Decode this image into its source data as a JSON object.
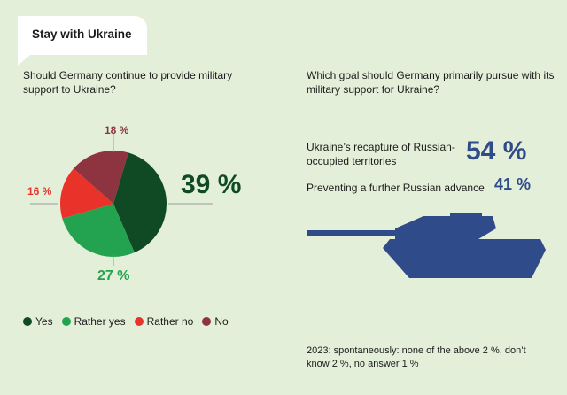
{
  "header": {
    "tag": "Stay with Ukraine"
  },
  "left": {
    "question": "Should Germany continue to provide military support to Ukraine?",
    "legend": [
      {
        "label": "Yes",
        "color": "#0f4a25"
      },
      {
        "label": "Rather yes",
        "color": "#23a350"
      },
      {
        "label": "Rather no",
        "color": "#e8322a"
      },
      {
        "label": "No",
        "color": "#8e3340"
      }
    ]
  },
  "right": {
    "question": "Which goal should Germany primarily pursue with its military support for Ukraine?",
    "goals": [
      {
        "label": "Ukraine’s recapture of Russian-occupied territories",
        "value_text": "54 %"
      },
      {
        "label": "Preventing a further Russian advance",
        "value_text": "41 %"
      }
    ],
    "note": "2023: spontaneously: none of the above 2 %, don’t know 2 %, no answer 1 %",
    "tank_icon": "tank-icon"
  },
  "chart_data": [
    {
      "type": "pie",
      "categories": [
        "Yes",
        "Rather yes",
        "Rather no",
        "No"
      ],
      "values": [
        39,
        27,
        16,
        18
      ],
      "value_labels": [
        "39 %",
        "27 %",
        "16 %",
        "18 %"
      ],
      "colors": [
        "#0f4a25",
        "#23a350",
        "#e8322a",
        "#8e3340"
      ],
      "legend_position": "bottom"
    },
    {
      "type": "bar",
      "categories": [
        "Ukraine’s recapture of Russian-occupied territories",
        "Preventing a further Russian advance"
      ],
      "values": [
        54,
        41
      ],
      "value_labels": [
        "54 %",
        "41 %"
      ]
    }
  ]
}
